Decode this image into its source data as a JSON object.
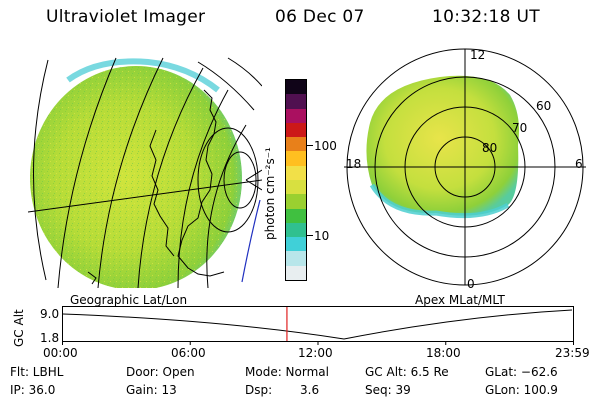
{
  "header": {
    "title": "Ultraviolet Imager",
    "date": "06 Dec 07",
    "time": "10:32:18 UT"
  },
  "colorbar": {
    "unit_label": "photon cm⁻²s⁻¹",
    "tick_100": "100",
    "tick_10": "10",
    "colors": [
      "#e8eef0",
      "#b8e6ea",
      "#40d0d8",
      "#30c090",
      "#40c040",
      "#9ad030",
      "#d8e040",
      "#f2e048",
      "#ffbf20",
      "#e8801a",
      "#cc1818",
      "#aa1060",
      "#501050",
      "#100418"
    ]
  },
  "geo_map": {
    "label": "Geographic Lat/Lon"
  },
  "polar_map": {
    "label": "Apex MLat/MLT",
    "mlt_12": "12",
    "mlt_18": "18",
    "mlt_6": "6",
    "mlt_0": "0",
    "lat_60": "60",
    "lat_70": "70",
    "lat_80": "80"
  },
  "altitude_plot": {
    "ylabel": "GC Alt",
    "ytick_top": "9.0",
    "ytick_bottom": "1.8",
    "xticks": [
      "00:00",
      "06:00",
      "12:00",
      "18:00",
      "23:59"
    ],
    "cursor_time": "10:32",
    "cursor_color": "#e02020"
  },
  "info": {
    "filter": "Flt: LBHL",
    "door": "Door: Open",
    "mode": "Mode: Normal",
    "gc_alt": "GC Alt: 6.5 Re",
    "glat": "GLat: −62.6",
    "ip": "IP: 36.0",
    "gain": "Gain: 13",
    "dsp_label": "Dsp:",
    "dsp_value": "3.6",
    "seq": "Seq: 39",
    "glon": "GLon: 100.9"
  }
}
